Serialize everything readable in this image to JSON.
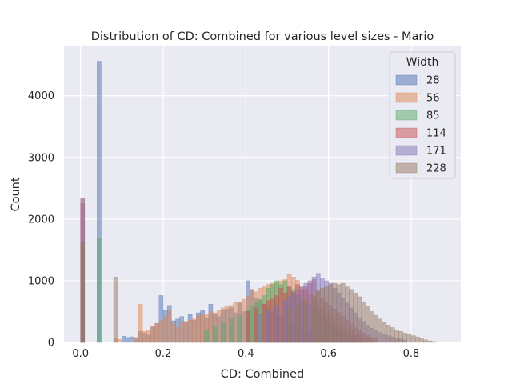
{
  "chart_data": {
    "type": "bar",
    "title": "Distribution of CD: Combined for various level sizes - Mario",
    "xlabel": "CD: Combined",
    "ylabel": "Count",
    "xlim": [
      -0.04,
      0.92
    ],
    "ylim": [
      0,
      4800
    ],
    "xticks": [
      {
        "value": 0.0,
        "label": "0.0"
      },
      {
        "value": 0.2,
        "label": "0.2"
      },
      {
        "value": 0.4,
        "label": "0.4"
      },
      {
        "value": 0.6,
        "label": "0.6"
      },
      {
        "value": 0.8,
        "label": "0.8"
      }
    ],
    "yticks": [
      {
        "value": 0,
        "label": "0"
      },
      {
        "value": 1000,
        "label": "1000"
      },
      {
        "value": 2000,
        "label": "2000"
      },
      {
        "value": 3000,
        "label": "3000"
      },
      {
        "value": 4000,
        "label": "4000"
      }
    ],
    "grid": true,
    "legend_position": "top-right",
    "legend_title": "Width",
    "bin_width": 0.01,
    "series": [
      {
        "name": "28",
        "color": "#4c72b0",
        "bins": [
          [
            0.04,
            4560
          ],
          [
            0.1,
            100
          ],
          [
            0.11,
            80
          ],
          [
            0.12,
            90
          ],
          [
            0.13,
            70
          ],
          [
            0.14,
            180
          ],
          [
            0.15,
            150
          ],
          [
            0.16,
            120
          ],
          [
            0.17,
            250
          ],
          [
            0.18,
            310
          ],
          [
            0.19,
            760
          ],
          [
            0.2,
            520
          ],
          [
            0.21,
            600
          ],
          [
            0.22,
            350
          ],
          [
            0.23,
            380
          ],
          [
            0.24,
            420
          ],
          [
            0.25,
            320
          ],
          [
            0.26,
            450
          ],
          [
            0.27,
            360
          ],
          [
            0.28,
            480
          ],
          [
            0.29,
            520
          ],
          [
            0.3,
            400
          ],
          [
            0.31,
            620
          ],
          [
            0.32,
            450
          ],
          [
            0.33,
            420
          ],
          [
            0.34,
            520
          ],
          [
            0.35,
            540
          ],
          [
            0.36,
            560
          ],
          [
            0.37,
            480
          ],
          [
            0.38,
            640
          ],
          [
            0.39,
            500
          ],
          [
            0.4,
            1000
          ],
          [
            0.41,
            860
          ],
          [
            0.42,
            720
          ],
          [
            0.43,
            680
          ],
          [
            0.44,
            600
          ],
          [
            0.45,
            540
          ],
          [
            0.46,
            500
          ],
          [
            0.47,
            460
          ],
          [
            0.48,
            420
          ],
          [
            0.49,
            380
          ],
          [
            0.5,
            340
          ],
          [
            0.51,
            300
          ],
          [
            0.52,
            260
          ],
          [
            0.53,
            220
          ],
          [
            0.54,
            190
          ],
          [
            0.55,
            160
          ],
          [
            0.56,
            130
          ],
          [
            0.57,
            100
          ],
          [
            0.58,
            80
          ],
          [
            0.59,
            60
          ]
        ]
      },
      {
        "name": "56",
        "color": "#dd8452",
        "bins": [
          [
            0.0,
            2330
          ],
          [
            0.08,
            60
          ],
          [
            0.09,
            50
          ],
          [
            0.13,
            80
          ],
          [
            0.14,
            620
          ],
          [
            0.15,
            180
          ],
          [
            0.16,
            200
          ],
          [
            0.17,
            260
          ],
          [
            0.18,
            300
          ],
          [
            0.19,
            350
          ],
          [
            0.2,
            420
          ],
          [
            0.21,
            520
          ],
          [
            0.22,
            300
          ],
          [
            0.23,
            240
          ],
          [
            0.24,
            330
          ],
          [
            0.25,
            340
          ],
          [
            0.26,
            360
          ],
          [
            0.27,
            380
          ],
          [
            0.28,
            440
          ],
          [
            0.29,
            440
          ],
          [
            0.3,
            450
          ],
          [
            0.31,
            500
          ],
          [
            0.32,
            480
          ],
          [
            0.33,
            520
          ],
          [
            0.34,
            560
          ],
          [
            0.35,
            580
          ],
          [
            0.36,
            600
          ],
          [
            0.37,
            660
          ],
          [
            0.38,
            660
          ],
          [
            0.39,
            700
          ],
          [
            0.4,
            750
          ],
          [
            0.41,
            860
          ],
          [
            0.42,
            820
          ],
          [
            0.43,
            880
          ],
          [
            0.44,
            900
          ],
          [
            0.45,
            940
          ],
          [
            0.46,
            960
          ],
          [
            0.47,
            980
          ],
          [
            0.48,
            1000
          ],
          [
            0.49,
            1020
          ],
          [
            0.5,
            1100
          ],
          [
            0.51,
            1060
          ],
          [
            0.52,
            1010
          ],
          [
            0.53,
            900
          ],
          [
            0.54,
            860
          ],
          [
            0.55,
            780
          ],
          [
            0.56,
            700
          ],
          [
            0.57,
            620
          ],
          [
            0.58,
            540
          ],
          [
            0.59,
            480
          ],
          [
            0.6,
            420
          ],
          [
            0.61,
            360
          ],
          [
            0.62,
            300
          ],
          [
            0.63,
            260
          ],
          [
            0.64,
            220
          ],
          [
            0.65,
            180
          ],
          [
            0.66,
            140
          ],
          [
            0.67,
            110
          ],
          [
            0.68,
            80
          ],
          [
            0.69,
            60
          ],
          [
            0.7,
            40
          ]
        ]
      },
      {
        "name": "85",
        "color": "#55a868",
        "bins": [
          [
            0.0,
            1640
          ],
          [
            0.04,
            1690
          ],
          [
            0.3,
            200
          ],
          [
            0.32,
            260
          ],
          [
            0.34,
            320
          ],
          [
            0.36,
            380
          ],
          [
            0.38,
            440
          ],
          [
            0.4,
            520
          ],
          [
            0.41,
            580
          ],
          [
            0.42,
            640
          ],
          [
            0.43,
            700
          ],
          [
            0.44,
            760
          ],
          [
            0.45,
            880
          ],
          [
            0.46,
            940
          ],
          [
            0.47,
            1000
          ],
          [
            0.48,
            940
          ],
          [
            0.49,
            1000
          ],
          [
            0.5,
            900
          ],
          [
            0.51,
            860
          ],
          [
            0.52,
            760
          ],
          [
            0.53,
            700
          ],
          [
            0.54,
            660
          ],
          [
            0.55,
            620
          ],
          [
            0.56,
            580
          ],
          [
            0.57,
            500
          ],
          [
            0.58,
            440
          ],
          [
            0.59,
            380
          ],
          [
            0.6,
            320
          ],
          [
            0.61,
            260
          ],
          [
            0.62,
            210
          ],
          [
            0.63,
            170
          ],
          [
            0.64,
            130
          ],
          [
            0.65,
            100
          ],
          [
            0.66,
            70
          ],
          [
            0.67,
            50
          ]
        ]
      },
      {
        "name": "114",
        "color": "#c44e52",
        "bins": [
          [
            0.0,
            2250
          ],
          [
            0.4,
            500
          ],
          [
            0.42,
            560
          ],
          [
            0.44,
            620
          ],
          [
            0.45,
            680
          ],
          [
            0.46,
            700
          ],
          [
            0.47,
            760
          ],
          [
            0.48,
            880
          ],
          [
            0.49,
            800
          ],
          [
            0.5,
            900
          ],
          [
            0.51,
            820
          ],
          [
            0.52,
            940
          ],
          [
            0.53,
            860
          ],
          [
            0.54,
            900
          ],
          [
            0.55,
            960
          ],
          [
            0.56,
            1020
          ],
          [
            0.57,
            820
          ],
          [
            0.58,
            720
          ],
          [
            0.59,
            660
          ],
          [
            0.6,
            600
          ],
          [
            0.61,
            540
          ],
          [
            0.62,
            480
          ],
          [
            0.63,
            420
          ],
          [
            0.64,
            360
          ],
          [
            0.65,
            300
          ],
          [
            0.66,
            240
          ],
          [
            0.67,
            190
          ],
          [
            0.68,
            150
          ],
          [
            0.69,
            110
          ],
          [
            0.7,
            80
          ],
          [
            0.71,
            60
          ]
        ]
      },
      {
        "name": "171",
        "color": "#8172b3",
        "bins": [
          [
            0.0,
            2330
          ],
          [
            0.43,
            450
          ],
          [
            0.45,
            520
          ],
          [
            0.47,
            600
          ],
          [
            0.49,
            680
          ],
          [
            0.5,
            740
          ],
          [
            0.51,
            800
          ],
          [
            0.52,
            860
          ],
          [
            0.53,
            900
          ],
          [
            0.54,
            960
          ],
          [
            0.55,
            1000
          ],
          [
            0.56,
            1060
          ],
          [
            0.57,
            1120
          ],
          [
            0.58,
            1040
          ],
          [
            0.59,
            1000
          ],
          [
            0.6,
            960
          ],
          [
            0.61,
            880
          ],
          [
            0.62,
            800
          ],
          [
            0.63,
            720
          ],
          [
            0.64,
            640
          ],
          [
            0.65,
            560
          ],
          [
            0.66,
            480
          ],
          [
            0.67,
            400
          ],
          [
            0.68,
            340
          ],
          [
            0.69,
            280
          ],
          [
            0.7,
            230
          ],
          [
            0.71,
            190
          ],
          [
            0.72,
            160
          ],
          [
            0.73,
            130
          ],
          [
            0.74,
            110
          ],
          [
            0.75,
            90
          ],
          [
            0.76,
            70
          ],
          [
            0.77,
            55
          ],
          [
            0.78,
            40
          ]
        ]
      },
      {
        "name": "228",
        "color": "#937860",
        "bins": [
          [
            0.0,
            1630
          ],
          [
            0.08,
            1060
          ],
          [
            0.5,
            560
          ],
          [
            0.52,
            620
          ],
          [
            0.54,
            700
          ],
          [
            0.56,
            760
          ],
          [
            0.57,
            840
          ],
          [
            0.58,
            880
          ],
          [
            0.59,
            900
          ],
          [
            0.6,
            940
          ],
          [
            0.61,
            960
          ],
          [
            0.62,
            940
          ],
          [
            0.63,
            960
          ],
          [
            0.64,
            900
          ],
          [
            0.65,
            860
          ],
          [
            0.66,
            800
          ],
          [
            0.67,
            740
          ],
          [
            0.68,
            660
          ],
          [
            0.69,
            580
          ],
          [
            0.7,
            500
          ],
          [
            0.71,
            440
          ],
          [
            0.72,
            380
          ],
          [
            0.73,
            320
          ],
          [
            0.74,
            280
          ],
          [
            0.75,
            240
          ],
          [
            0.76,
            200
          ],
          [
            0.77,
            180
          ],
          [
            0.78,
            150
          ],
          [
            0.79,
            130
          ],
          [
            0.8,
            110
          ],
          [
            0.81,
            90
          ],
          [
            0.82,
            60
          ],
          [
            0.83,
            40
          ],
          [
            0.84,
            25
          ],
          [
            0.85,
            15
          ]
        ]
      }
    ]
  }
}
